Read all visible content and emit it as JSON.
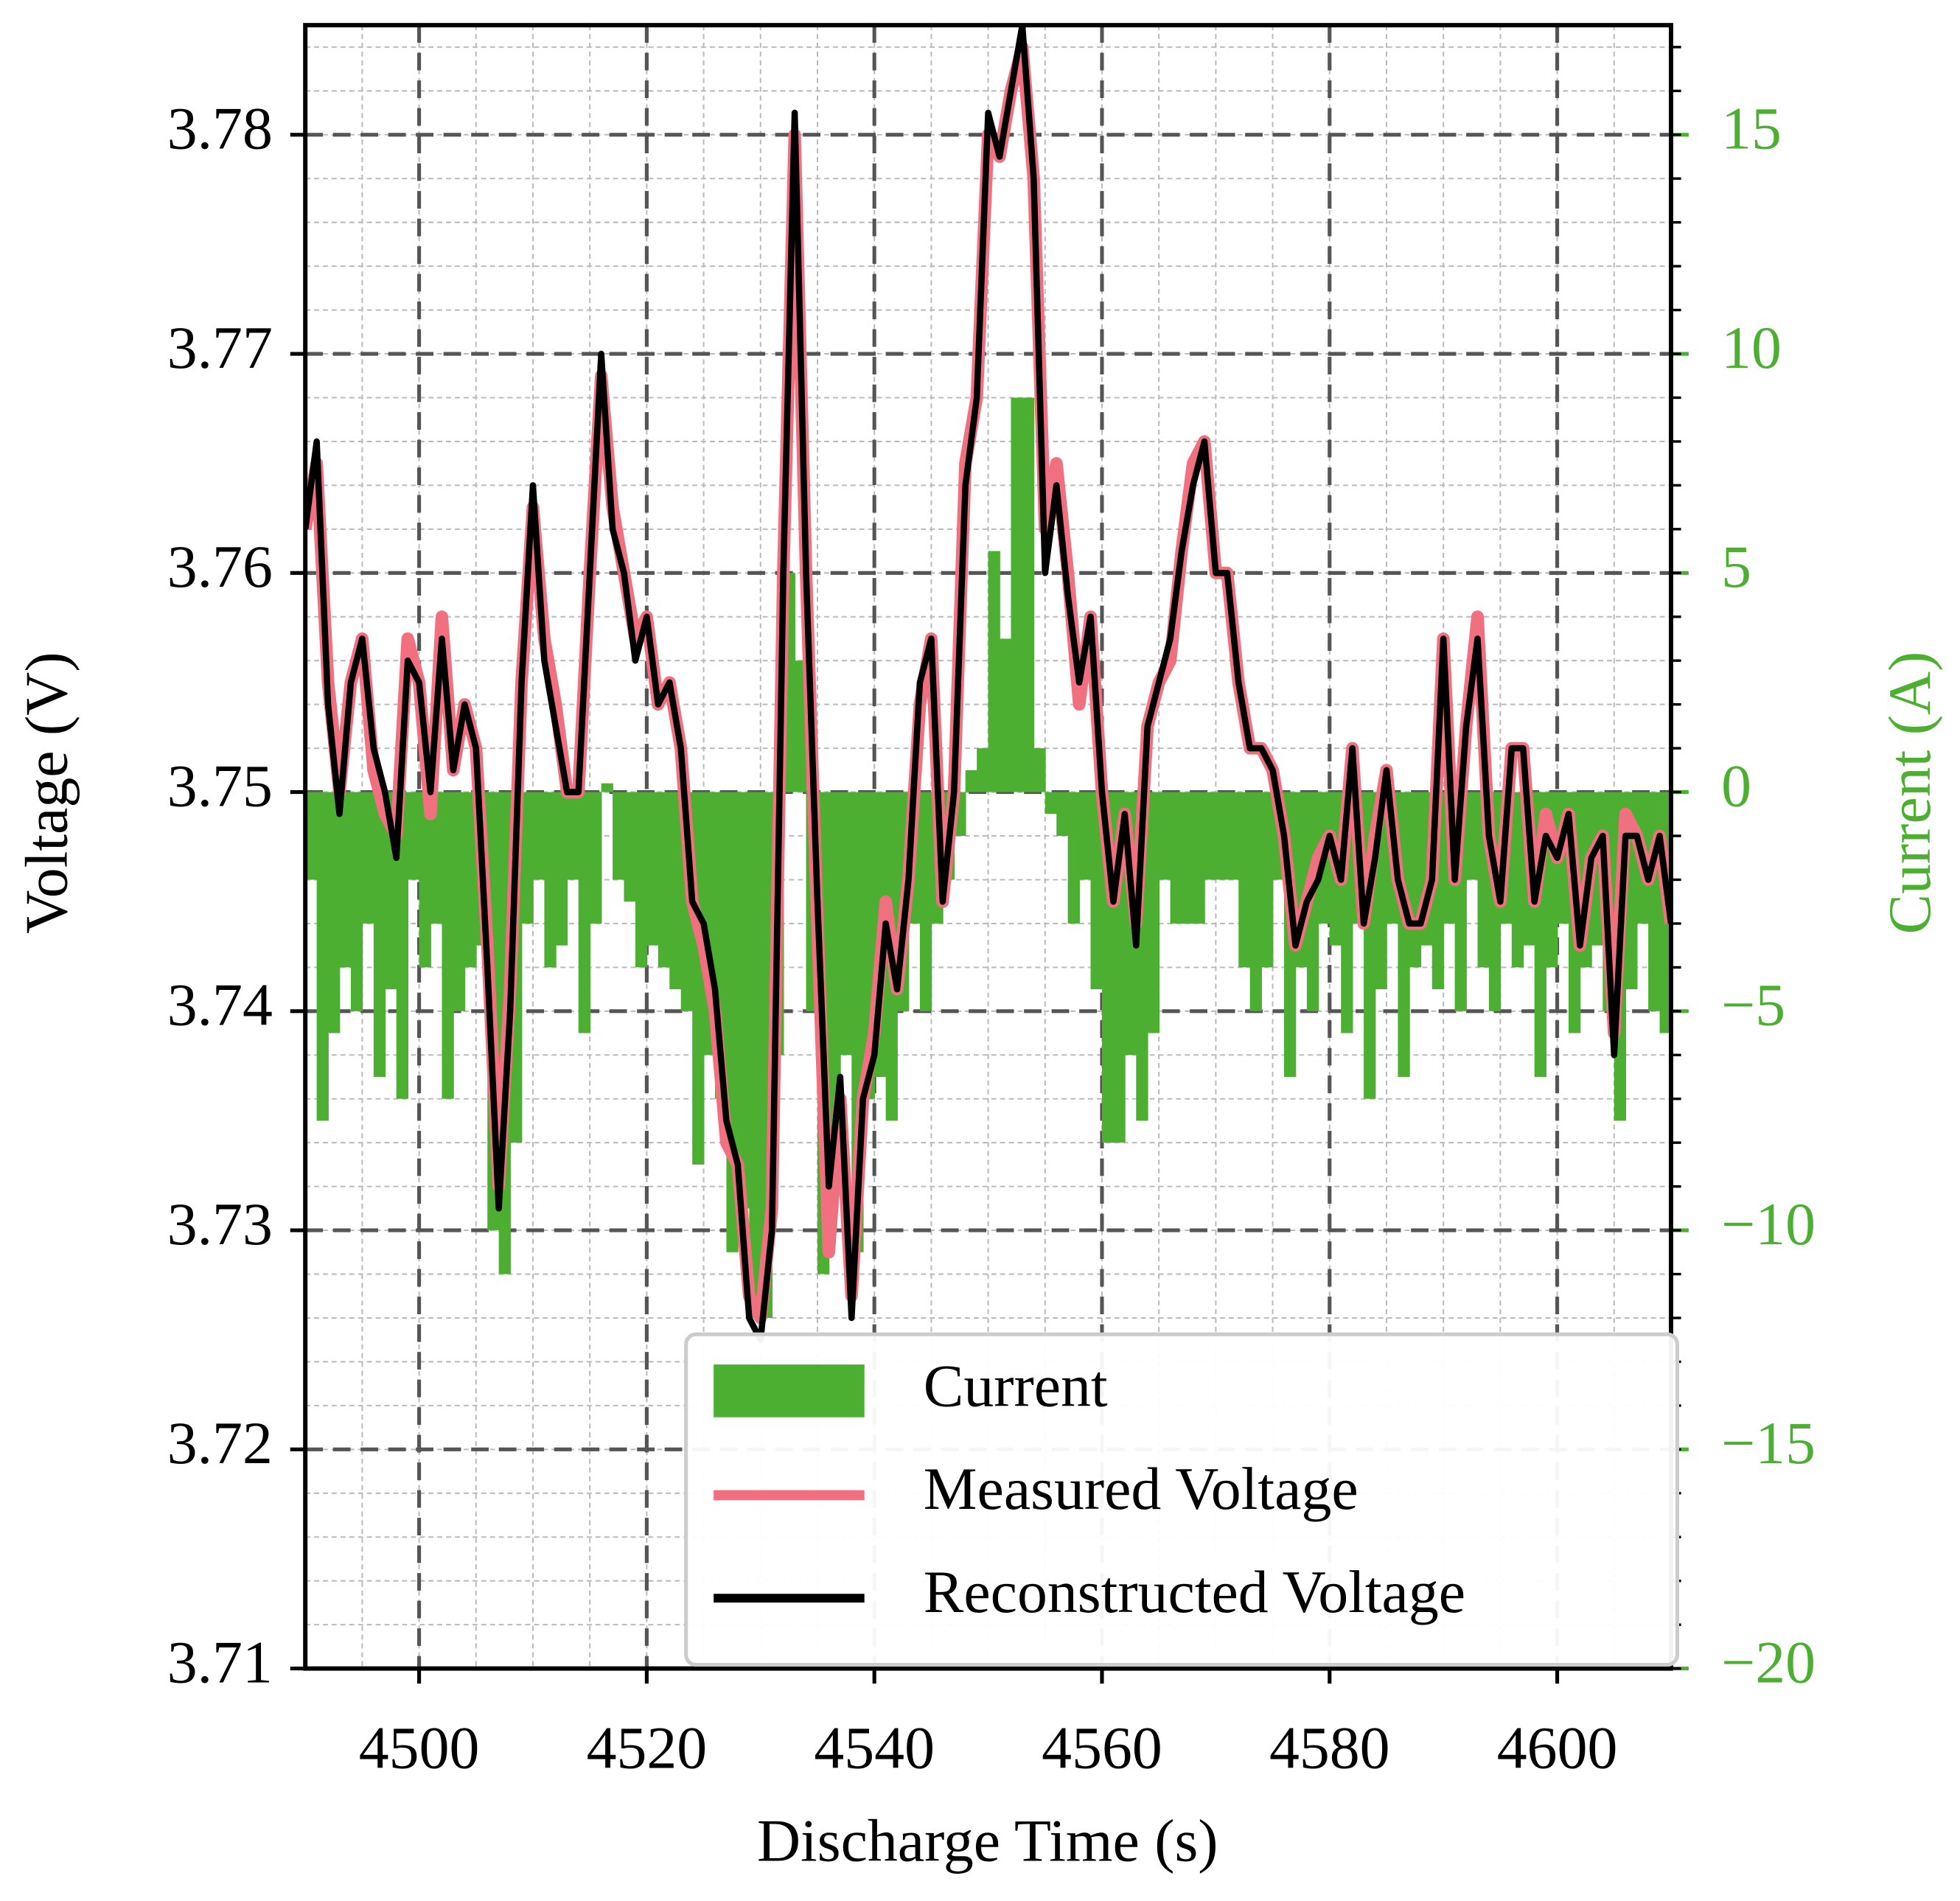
{
  "chart_data": {
    "type": "dual_axis_bar_line",
    "xlabel": "Discharge Time (s)",
    "ylabel": "Voltage (V)",
    "y2label": "Current (A)",
    "xlim": [
      4490,
      4610
    ],
    "xticks": [
      4500,
      4520,
      4540,
      4560,
      4580,
      4600
    ],
    "ylim": [
      3.71,
      3.785
    ],
    "yticks": [
      3.71,
      3.72,
      3.73,
      3.74,
      3.75,
      3.76,
      3.77,
      3.78
    ],
    "y2lim": [
      -20,
      17.5
    ],
    "y2ticks": [
      {
        "value": -20,
        "label": "−20"
      },
      {
        "value": -15,
        "label": "−15"
      },
      {
        "value": -10,
        "label": "−10"
      },
      {
        "value": -5,
        "label": "−5"
      },
      0,
      5,
      10,
      15
    ],
    "grid": true,
    "minor_grid": true,
    "legend": "lower right",
    "y2color": "#4caf32",
    "series": [
      {
        "name": "Current",
        "kind": "bar",
        "axis": "y2",
        "color": "#4caf32",
        "x": [
          4490,
          4491,
          4492,
          4493,
          4494,
          4495,
          4496,
          4497,
          4498,
          4499,
          4500,
          4501,
          4502,
          4503,
          4504,
          4505,
          4506,
          4507,
          4508,
          4509,
          4510,
          4511,
          4512,
          4513,
          4514,
          4515,
          4516,
          4517,
          4518,
          4519,
          4520,
          4521,
          4522,
          4523,
          4524,
          4525,
          4526,
          4527,
          4528,
          4529,
          4530,
          4531,
          4532,
          4533,
          4534,
          4535,
          4536,
          4537,
          4538,
          4539,
          4540,
          4541,
          4542,
          4543,
          4544,
          4545,
          4546,
          4547,
          4548,
          4549,
          4550,
          4551,
          4552,
          4553,
          4554,
          4555,
          4556,
          4557,
          4558,
          4559,
          4560,
          4561,
          4562,
          4563,
          4564,
          4565,
          4566,
          4567,
          4568,
          4569,
          4570,
          4571,
          4572,
          4573,
          4574,
          4575,
          4576,
          4577,
          4578,
          4579,
          4580,
          4581,
          4582,
          4583,
          4584,
          4585,
          4586,
          4587,
          4588,
          4589,
          4590,
          4591,
          4592,
          4593,
          4594,
          4595,
          4596,
          4597,
          4598,
          4599,
          4600,
          4601,
          4602,
          4603,
          4604,
          4605,
          4606,
          4607,
          4608,
          4609
        ],
        "values": [
          -2,
          -7.5,
          -5.5,
          -4,
          -5,
          -3,
          -6.5,
          -4.5,
          -7,
          -2,
          -4,
          -3,
          -7,
          -5,
          -4,
          -3.5,
          -10,
          -11,
          -8,
          -3,
          -2,
          -4,
          -3.5,
          -2,
          -5.5,
          -3,
          0.2,
          -2,
          -2.5,
          -4,
          -3.5,
          -4,
          -4.5,
          -5,
          -8.5,
          -6,
          -7,
          -10.5,
          -9.5,
          -12,
          -12,
          -6,
          5,
          3,
          -5,
          -11,
          -8,
          -6,
          -10.5,
          -7,
          -6.5,
          -7.5,
          -5,
          -3,
          -5,
          -3,
          -2,
          -1,
          0.5,
          1,
          5.5,
          3.5,
          9,
          9,
          1,
          -0.5,
          -1,
          -3,
          -2,
          -4.5,
          -8,
          -8,
          -6,
          -7.5,
          -5.5,
          -2,
          -3,
          -3,
          -3,
          -2,
          -2,
          -2,
          -4,
          -5,
          -4,
          -2,
          -6.5,
          -4,
          -5,
          -3,
          -3.5,
          -5.5,
          -3,
          -7,
          -4.5,
          -3,
          -6.5,
          -4,
          -3.5,
          -4.5,
          -3,
          -5,
          -2,
          -4,
          -5,
          -3,
          -4,
          -3.5,
          -6.5,
          -4,
          -3,
          -5.5,
          -4,
          -3.5,
          -5,
          -7.5,
          -4.5,
          -3,
          -5,
          -5.5
        ]
      },
      {
        "name": "Measured Voltage",
        "kind": "line",
        "color": "#f07080",
        "x": [
          4490,
          4491,
          4492,
          4493,
          4494,
          4495,
          4496,
          4497,
          4498,
          4499,
          4500,
          4501,
          4502,
          4503,
          4504,
          4505,
          4506,
          4507,
          4508,
          4509,
          4510,
          4511,
          4512,
          4513,
          4514,
          4515,
          4516,
          4517,
          4518,
          4519,
          4520,
          4521,
          4522,
          4523,
          4524,
          4525,
          4526,
          4527,
          4528,
          4529,
          4530,
          4531,
          4532,
          4533,
          4534,
          4535,
          4536,
          4537,
          4538,
          4539,
          4540,
          4541,
          4542,
          4543,
          4544,
          4545,
          4546,
          4547,
          4548,
          4549,
          4550,
          4551,
          4552,
          4553,
          4554,
          4555,
          4556,
          4557,
          4558,
          4559,
          4560,
          4561,
          4562,
          4563,
          4564,
          4565,
          4566,
          4567,
          4568,
          4569,
          4570,
          4571,
          4572,
          4573,
          4574,
          4575,
          4576,
          4577,
          4578,
          4579,
          4580,
          4581,
          4582,
          4583,
          4584,
          4585,
          4586,
          4587,
          4588,
          4589,
          4590,
          4591,
          4592,
          4593,
          4594,
          4595,
          4596,
          4597,
          4598,
          4599,
          4600,
          4601,
          4602,
          4603,
          4604,
          4605,
          4606,
          4607,
          4608,
          4609,
          4610
        ],
        "values": [
          3.762,
          3.765,
          3.755,
          3.75,
          3.755,
          3.757,
          3.751,
          3.749,
          3.748,
          3.757,
          3.755,
          3.749,
          3.758,
          3.751,
          3.754,
          3.752,
          3.743,
          3.732,
          3.741,
          3.755,
          3.763,
          3.757,
          3.754,
          3.75,
          3.75,
          3.76,
          3.769,
          3.763,
          3.76,
          3.757,
          3.758,
          3.754,
          3.755,
          3.752,
          3.745,
          3.743,
          3.74,
          3.734,
          3.733,
          3.727,
          3.726,
          3.731,
          3.76,
          3.78,
          3.76,
          3.744,
          3.729,
          3.736,
          3.727,
          3.736,
          3.739,
          3.745,
          3.741,
          3.746,
          3.754,
          3.757,
          3.745,
          3.75,
          3.765,
          3.768,
          3.78,
          3.779,
          3.782,
          3.784,
          3.778,
          3.762,
          3.765,
          3.76,
          3.754,
          3.758,
          3.75,
          3.745,
          3.749,
          3.744,
          3.753,
          3.755,
          3.756,
          3.761,
          3.765,
          3.766,
          3.76,
          3.76,
          3.755,
          3.752,
          3.752,
          3.751,
          3.748,
          3.743,
          3.745,
          3.747,
          3.748,
          3.746,
          3.752,
          3.744,
          3.748,
          3.751,
          3.746,
          3.744,
          3.744,
          3.746,
          3.757,
          3.746,
          3.753,
          3.758,
          3.748,
          3.745,
          3.752,
          3.752,
          3.745,
          3.749,
          3.747,
          3.749,
          3.743,
          3.747,
          3.748,
          3.739,
          3.749,
          3.748,
          3.746,
          3.748,
          3.744
        ]
      },
      {
        "name": "Reconstructed Voltage",
        "kind": "line",
        "color": "#000000",
        "x": [
          4490,
          4491,
          4492,
          4493,
          4494,
          4495,
          4496,
          4497,
          4498,
          4499,
          4500,
          4501,
          4502,
          4503,
          4504,
          4505,
          4506,
          4507,
          4508,
          4509,
          4510,
          4511,
          4512,
          4513,
          4514,
          4515,
          4516,
          4517,
          4518,
          4519,
          4520,
          4521,
          4522,
          4523,
          4524,
          4525,
          4526,
          4527,
          4528,
          4529,
          4530,
          4531,
          4532,
          4533,
          4534,
          4535,
          4536,
          4537,
          4538,
          4539,
          4540,
          4541,
          4542,
          4543,
          4544,
          4545,
          4546,
          4547,
          4548,
          4549,
          4550,
          4551,
          4552,
          4553,
          4554,
          4555,
          4556,
          4557,
          4558,
          4559,
          4560,
          4561,
          4562,
          4563,
          4564,
          4565,
          4566,
          4567,
          4568,
          4569,
          4570,
          4571,
          4572,
          4573,
          4574,
          4575,
          4576,
          4577,
          4578,
          4579,
          4580,
          4581,
          4582,
          4583,
          4584,
          4585,
          4586,
          4587,
          4588,
          4589,
          4590,
          4591,
          4592,
          4593,
          4594,
          4595,
          4596,
          4597,
          4598,
          4599,
          4600,
          4601,
          4602,
          4603,
          4604,
          4605,
          4606,
          4607,
          4608,
          4609,
          4610
        ],
        "values": [
          3.762,
          3.766,
          3.754,
          3.749,
          3.755,
          3.757,
          3.752,
          3.75,
          3.747,
          3.756,
          3.755,
          3.75,
          3.757,
          3.751,
          3.754,
          3.752,
          3.742,
          3.731,
          3.74,
          3.755,
          3.764,
          3.756,
          3.753,
          3.75,
          3.75,
          3.76,
          3.77,
          3.762,
          3.76,
          3.756,
          3.758,
          3.754,
          3.755,
          3.752,
          3.745,
          3.744,
          3.741,
          3.735,
          3.733,
          3.726,
          3.725,
          3.73,
          3.76,
          3.781,
          3.76,
          3.745,
          3.732,
          3.737,
          3.726,
          3.736,
          3.738,
          3.744,
          3.741,
          3.746,
          3.755,
          3.757,
          3.745,
          3.75,
          3.764,
          3.768,
          3.781,
          3.779,
          3.782,
          3.785,
          3.778,
          3.76,
          3.764,
          3.759,
          3.755,
          3.758,
          3.75,
          3.745,
          3.749,
          3.743,
          3.753,
          3.755,
          3.757,
          3.761,
          3.764,
          3.766,
          3.76,
          3.76,
          3.755,
          3.752,
          3.752,
          3.751,
          3.748,
          3.743,
          3.745,
          3.746,
          3.748,
          3.746,
          3.752,
          3.744,
          3.747,
          3.751,
          3.746,
          3.744,
          3.744,
          3.746,
          3.757,
          3.746,
          3.753,
          3.757,
          3.748,
          3.745,
          3.752,
          3.752,
          3.745,
          3.748,
          3.747,
          3.749,
          3.743,
          3.747,
          3.748,
          3.738,
          3.748,
          3.748,
          3.746,
          3.748,
          3.744
        ]
      }
    ]
  }
}
